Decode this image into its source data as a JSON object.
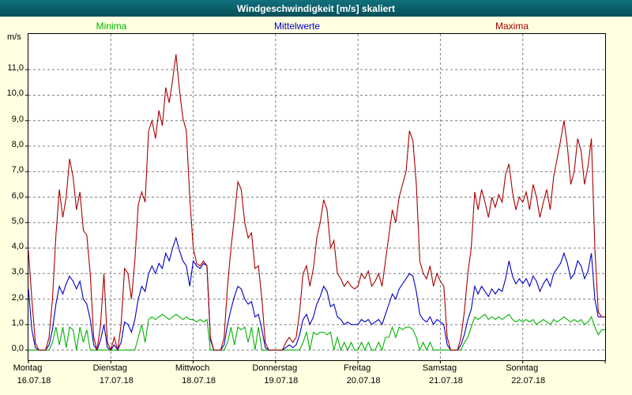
{
  "window": {
    "title": "Windgeschwindigkeit [m/s] skaliert"
  },
  "legend": {
    "minima": "Minima",
    "mittelwerte": "Mittelwerte",
    "maxima": "Maxima"
  },
  "axis": {
    "unit_label": "m/s"
  },
  "colors": {
    "titlebar_top": "#11717d",
    "titlebar_bottom": "#064e57",
    "background": "#ffffe1",
    "plot_bg": "#ffffff",
    "grid": "#7f7f7f",
    "axis": "#000000",
    "minima": "#00b400",
    "mittelwerte": "#0000c0",
    "maxima": "#a80000"
  },
  "chart_data": {
    "type": "line",
    "title": "Windgeschwindigkeit [m/s] skaliert",
    "ylabel": "m/s",
    "ylim": [
      0,
      12
    ],
    "y_domain": [
      -0.4,
      12.4
    ],
    "y_gridlines": [
      0,
      1,
      2,
      3,
      4,
      5,
      6,
      7,
      8,
      9,
      10,
      11
    ],
    "y_tick_labels": [
      "0,0",
      "1,0",
      "2,0",
      "3,0",
      "4,0",
      "5,0",
      "6,0",
      "7,0",
      "8,0",
      "9,0",
      "10,0",
      "11,0"
    ],
    "hours_total": 168,
    "day_boundaries_hours": [
      24,
      48,
      72,
      96,
      120,
      144
    ],
    "x_unit": "hourly values over one week",
    "grid": "dashed",
    "legend_position": "top",
    "days": [
      {
        "name": "Montag",
        "date": "16.07.18"
      },
      {
        "name": "Dienstag",
        "date": "17.07.18"
      },
      {
        "name": "Mittwoch",
        "date": "18.07.18"
      },
      {
        "name": "Donnerstag",
        "date": "19.07.18"
      },
      {
        "name": "Freitag",
        "date": "20.07.18"
      },
      {
        "name": "Samstag",
        "date": "21.07.18"
      },
      {
        "name": "Sonntag",
        "date": "22.07.18"
      }
    ],
    "series": [
      {
        "name": "Minima",
        "color": "#00b400",
        "values": [
          0,
          0,
          0,
          0,
          0,
          0,
          0,
          0.3,
          0.9,
          0.2,
          0.9,
          0.1,
          0.9,
          0.8,
          0,
          0.9,
          0.3,
          0.8,
          0,
          0,
          0,
          0,
          0,
          0,
          0,
          0,
          0,
          0,
          0,
          0,
          0,
          0,
          0.5,
          1.0,
          0.3,
          1.2,
          1.3,
          1.2,
          1.3,
          1.4,
          1.3,
          1.2,
          1.3,
          1.4,
          1.3,
          1.2,
          1.3,
          1.2,
          1.2,
          1.1,
          1.2,
          1.1,
          1.2,
          0,
          0,
          0,
          0,
          0,
          0.3,
          0.9,
          0.2,
          0.9,
          0.8,
          0.9,
          0.3,
          0.9,
          0,
          0.9,
          0,
          0,
          0,
          0,
          0,
          0,
          0,
          0,
          0,
          0,
          0,
          0,
          0.3,
          0.7,
          0,
          0.7,
          0.6,
          0.7,
          0.7,
          0.6,
          0.7,
          0,
          0.5,
          0,
          0.3,
          0,
          0.3,
          0,
          0,
          0.3,
          0,
          0.3,
          0,
          0,
          0.3,
          0,
          0.5,
          0.5,
          0.9,
          0.5,
          0.9,
          0.8,
          0.9,
          0.9,
          0.8,
          0.5,
          0,
          0.3,
          0,
          0.3,
          0,
          0,
          0,
          0,
          0,
          0,
          0,
          0,
          0,
          0.3,
          0.5,
          0.9,
          1.3,
          1.2,
          1.3,
          1.4,
          1.2,
          1.3,
          1.2,
          1.3,
          1.2,
          1.3,
          1.4,
          1.2,
          1.1,
          1.2,
          1.1,
          1.2,
          1.1,
          1.2,
          1.0,
          1.1,
          1.2,
          1.1,
          1.0,
          1.2,
          1.1,
          1.2,
          1.3,
          1.2,
          1.1,
          1.2,
          1.1,
          1.2,
          1.0,
          1.1,
          1.3,
          0.9,
          0.6,
          0.8
        ]
      },
      {
        "name": "Mittelwerte",
        "color": "#0000c0",
        "values": [
          2.4,
          0.8,
          0.1,
          0,
          0,
          0,
          0.2,
          0.8,
          1.8,
          2.5,
          2.2,
          2.6,
          2.9,
          2.7,
          2.4,
          2.7,
          2.0,
          1.8,
          1.2,
          0.2,
          0,
          0.4,
          1.0,
          0.1,
          0,
          0.2,
          0,
          0.3,
          1.1,
          1.0,
          0.7,
          1.2,
          2.0,
          2.5,
          2.3,
          3.0,
          3.3,
          3.0,
          3.4,
          3.2,
          3.8,
          3.5,
          4.0,
          4.4,
          3.9,
          3.5,
          3.3,
          2.5,
          3.5,
          3.3,
          3.2,
          3.4,
          3.3,
          0.4,
          0,
          0,
          0,
          0.2,
          1.0,
          1.6,
          2.1,
          2.5,
          2.4,
          2.0,
          1.8,
          1.9,
          1.3,
          1.4,
          0.8,
          0.1,
          0,
          0,
          0,
          0,
          0,
          0.1,
          0.2,
          0.1,
          0.2,
          0.6,
          1.2,
          1.4,
          1.0,
          1.3,
          1.8,
          2.1,
          2.5,
          2.3,
          1.7,
          1.8,
          1.3,
          1.2,
          1.0,
          1.1,
          1.0,
          1.0,
          1.0,
          1.2,
          1.1,
          1.2,
          1.0,
          1.1,
          1.2,
          1.0,
          1.4,
          1.8,
          2.2,
          2.0,
          2.4,
          2.6,
          2.8,
          3.0,
          2.9,
          2.3,
          1.4,
          1.2,
          1.1,
          1.3,
          1.0,
          1.2,
          1.1,
          1.0,
          0.2,
          0,
          0,
          0,
          0.2,
          0.6,
          1.2,
          1.6,
          2.5,
          2.2,
          2.5,
          2.3,
          2.1,
          2.4,
          2.2,
          2.4,
          2.3,
          2.8,
          3.5,
          2.9,
          2.6,
          2.8,
          2.6,
          2.8,
          2.5,
          2.9,
          2.7,
          2.3,
          2.6,
          2.8,
          2.5,
          3.0,
          3.2,
          3.4,
          3.8,
          3.4,
          2.8,
          3.0,
          3.5,
          3.3,
          2.8,
          3.1,
          3.8,
          2.0,
          1.3,
          1.3
        ]
      },
      {
        "name": "Maxima",
        "color": "#a80000",
        "values": [
          3.9,
          2.0,
          0.3,
          0,
          0,
          0,
          0.5,
          2.0,
          4.5,
          6.3,
          5.2,
          6.0,
          7.5,
          6.8,
          5.5,
          6.2,
          4.7,
          4.5,
          3.0,
          0.5,
          0,
          1.0,
          3.0,
          0.3,
          0,
          0.5,
          0,
          1.0,
          3.2,
          3.0,
          2.0,
          3.5,
          5.7,
          6.2,
          5.8,
          8.6,
          9.0,
          8.3,
          9.4,
          8.8,
          10.3,
          9.7,
          10.6,
          11.6,
          10.2,
          9.1,
          8.6,
          6.0,
          4.0,
          3.4,
          3.3,
          3.5,
          3.3,
          0.5,
          0,
          0,
          0,
          0.5,
          2.5,
          4.0,
          5.2,
          6.6,
          6.3,
          5.0,
          4.4,
          4.6,
          3.2,
          3.3,
          2.0,
          0.3,
          0,
          0,
          0,
          0,
          0,
          0.3,
          0.5,
          0.3,
          0.5,
          1.5,
          3.0,
          3.3,
          2.5,
          3.2,
          4.4,
          5.0,
          5.9,
          5.5,
          4.0,
          4.3,
          3.0,
          2.8,
          2.5,
          2.7,
          2.5,
          2.4,
          2.5,
          3.0,
          2.8,
          3.1,
          2.5,
          2.7,
          3.0,
          2.5,
          3.5,
          4.5,
          5.5,
          5.0,
          6.0,
          6.5,
          7.0,
          8.6,
          8.2,
          6.5,
          3.5,
          3.0,
          2.8,
          3.3,
          2.5,
          3.0,
          2.7,
          2.5,
          0.5,
          0,
          0,
          0,
          0.5,
          1.5,
          3.0,
          4.0,
          6.2,
          5.5,
          6.3,
          5.8,
          5.2,
          6.0,
          5.6,
          6.1,
          5.8,
          6.9,
          7.3,
          6.2,
          5.5,
          6.0,
          5.8,
          6.2,
          5.5,
          6.5,
          6.0,
          5.2,
          5.8,
          6.3,
          5.5,
          6.8,
          7.5,
          8.2,
          9.0,
          8.0,
          6.5,
          7.0,
          8.3,
          7.8,
          6.5,
          7.2,
          8.3,
          4.0,
          1.5,
          1.3
        ]
      }
    ]
  }
}
